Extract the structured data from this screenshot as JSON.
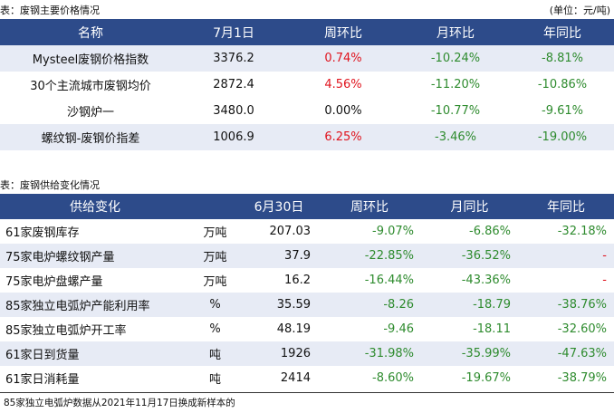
{
  "table1": {
    "caption": "表：废钢主要价格情况",
    "unit_note": "(单位：元/吨)",
    "headers": [
      "名称",
      "7月1日",
      "周环比",
      "月环比",
      "年同比"
    ],
    "rows": [
      {
        "name": "Mysteel废钢价格指数",
        "value": "3376.2",
        "wow": "0.74%",
        "mom": "-10.24%",
        "yoy": "-8.81%"
      },
      {
        "name": "30个主流城市废钢均价",
        "value": "2872.4",
        "wow": "4.56%",
        "mom": "-11.20%",
        "yoy": "-10.86%"
      },
      {
        "name": "沙钢炉一",
        "value": "3480.0",
        "wow": "0.00%",
        "mom": "-10.77%",
        "yoy": "-9.61%"
      },
      {
        "name": "螺纹钢-废钢价指差",
        "value": "1006.9",
        "wow": "6.25%",
        "mom": "-3.46%",
        "yoy": "-19.00%"
      }
    ]
  },
  "table2": {
    "caption": "表：废钢供给变化情况",
    "headers": [
      "供给变化",
      "",
      "6月30日",
      "周环比",
      "月同比",
      "年同比"
    ],
    "rows": [
      {
        "name": "61家废钢库存",
        "unit": "万吨",
        "value": "207.03",
        "wow": "-9.07%",
        "mom": "-6.86%",
        "yoy": "-32.18%"
      },
      {
        "name": "75家电炉螺纹钢产量",
        "unit": "万吨",
        "value": "37.9",
        "wow": "-22.85%",
        "mom": "-36.52%",
        "yoy": "-"
      },
      {
        "name": "75家电炉盘螺产量",
        "unit": "万吨",
        "value": "16.2",
        "wow": "-16.44%",
        "mom": "-43.36%",
        "yoy": "-"
      },
      {
        "name": "85家独立电弧炉产能利用率",
        "unit": "%",
        "value": "35.59",
        "wow": "-8.26",
        "mom": "-18.79",
        "yoy": "-38.76%"
      },
      {
        "name": "85家独立电弧炉开工率",
        "unit": "%",
        "value": "48.19",
        "wow": "-9.46",
        "mom": "-18.11",
        "yoy": "-32.60%"
      },
      {
        "name": "61家日到货量",
        "unit": "吨",
        "value": "1926",
        "wow": "-31.98%",
        "mom": "-35.99%",
        "yoy": "-47.63%"
      },
      {
        "name": "61家日消耗量",
        "unit": "吨",
        "value": "2414",
        "wow": "-8.60%",
        "mom": "-19.67%",
        "yoy": "-38.79%"
      }
    ]
  },
  "footer": "85家独立电弧炉数据从2021年11月17日换成新样本的",
  "colors": {
    "header_bg": "#2d4b8a",
    "alt_row_bg": "#e7ebf5",
    "positive": "#e0141e",
    "negative": "#2e8b2e"
  }
}
